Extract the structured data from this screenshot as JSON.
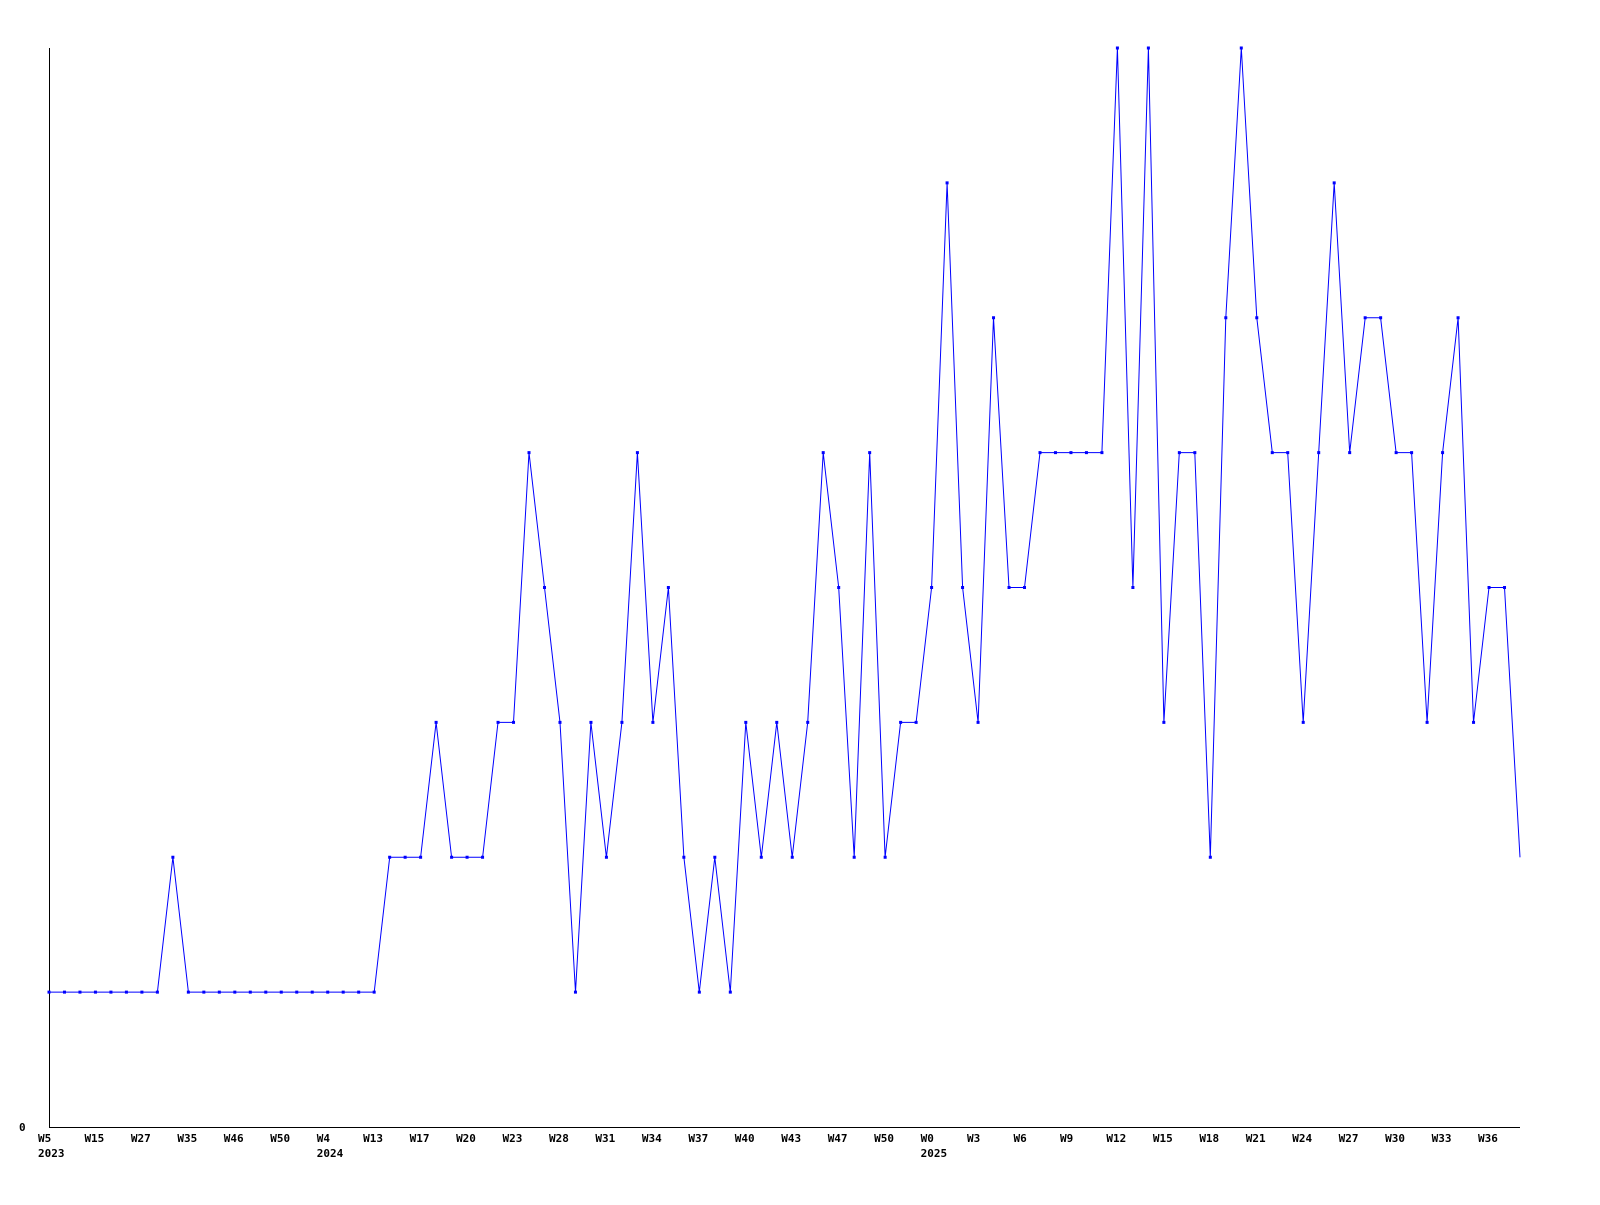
{
  "chart_data": {
    "type": "line",
    "title": "",
    "xlabel": "",
    "ylabel": "",
    "y_tick_labels": [
      "0"
    ],
    "ylim": [
      0,
      8
    ],
    "grid": false,
    "legend": "none",
    "line_color": "#0000ff",
    "x_tick_every": 3,
    "x_tick_labels": [
      "W5",
      "W15",
      "W27",
      "W35",
      "W46",
      "W50",
      "W4",
      "W13",
      "W17",
      "W20",
      "W23",
      "W28",
      "W31",
      "W34",
      "W37",
      "W40",
      "W43",
      "W47",
      "W50",
      "W0",
      "W3",
      "W6",
      "W9",
      "W12",
      "W15",
      "W18",
      "W21",
      "W24",
      "W27",
      "W30",
      "W33",
      "W36"
    ],
    "year_labels": [
      {
        "tick": 0,
        "label": "2023"
      },
      {
        "tick": 6,
        "label": "2024"
      },
      {
        "tick": 19,
        "label": "2025"
      }
    ],
    "values": [
      1,
      1,
      1,
      1,
      1,
      1,
      1,
      1,
      2,
      1,
      1,
      1,
      1,
      1,
      1,
      1,
      1,
      1,
      1,
      1,
      1,
      1,
      2,
      2,
      2,
      3,
      2,
      2,
      2,
      3,
      3,
      5,
      4,
      3,
      1,
      3,
      2,
      3,
      5,
      3,
      4,
      2,
      1,
      2,
      1,
      3,
      2,
      3,
      2,
      3,
      5,
      4,
      2,
      5,
      2,
      3,
      3,
      4,
      7,
      4,
      3,
      6,
      4,
      4,
      5,
      5,
      5,
      5,
      5,
      8,
      4,
      8,
      3,
      5,
      5,
      2,
      6,
      8,
      6,
      5,
      5,
      3,
      5,
      7,
      5,
      6,
      6,
      5,
      5,
      3,
      5,
      6,
      3,
      4,
      4,
      2
    ]
  }
}
